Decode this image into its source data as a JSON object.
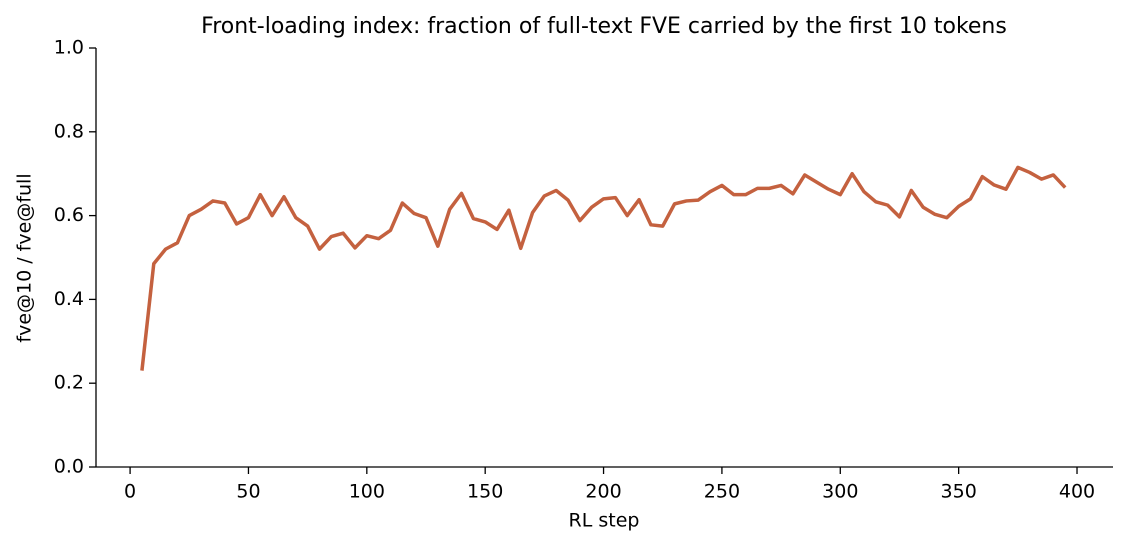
{
  "chart_data": {
    "type": "line",
    "title": "Front-loading index: fraction of full-text FVE carried by the first 10 tokens",
    "x_label": "RL step",
    "y_label": "fve@10 / fve@full",
    "x": [
      5,
      10,
      15,
      20,
      25,
      30,
      35,
      40,
      45,
      50,
      55,
      60,
      65,
      70,
      75,
      80,
      85,
      90,
      95,
      100,
      105,
      110,
      115,
      120,
      125,
      130,
      135,
      140,
      145,
      150,
      155,
      160,
      165,
      170,
      175,
      180,
      185,
      190,
      195,
      200,
      205,
      210,
      215,
      220,
      225,
      230,
      235,
      240,
      245,
      250,
      255,
      260,
      265,
      270,
      275,
      280,
      285,
      290,
      295,
      300,
      305,
      310,
      315,
      320,
      325,
      330,
      335,
      340,
      345,
      350,
      355,
      360,
      365,
      370,
      375,
      380,
      385,
      390,
      395
    ],
    "series": [
      {
        "name": "fve@10 / fve@full",
        "color": "#c4613f",
        "values": [
          0.23,
          0.485,
          0.52,
          0.535,
          0.6,
          0.615,
          0.635,
          0.63,
          0.58,
          0.595,
          0.65,
          0.6,
          0.645,
          0.595,
          0.575,
          0.52,
          0.55,
          0.558,
          0.523,
          0.552,
          0.545,
          0.565,
          0.63,
          0.605,
          0.595,
          0.527,
          0.615,
          0.653,
          0.593,
          0.585,
          0.567,
          0.613,
          0.522,
          0.607,
          0.647,
          0.66,
          0.637,
          0.588,
          0.62,
          0.64,
          0.643,
          0.6,
          0.638,
          0.578,
          0.575,
          0.628,
          0.635,
          0.637,
          0.657,
          0.672,
          0.65,
          0.65,
          0.665,
          0.665,
          0.672,
          0.652,
          0.697,
          0.68,
          0.663,
          0.65,
          0.7,
          0.657,
          0.633,
          0.625,
          0.597,
          0.66,
          0.62,
          0.603,
          0.595,
          0.622,
          0.64,
          0.693,
          0.673,
          0.663,
          0.715,
          0.703,
          0.687,
          0.697,
          0.667
        ]
      }
    ],
    "xlim": [
      -14.4,
      415.2
    ],
    "ylim": [
      0,
      1
    ],
    "xticks": [
      0,
      50,
      100,
      150,
      200,
      250,
      300,
      350,
      400
    ],
    "yticks": [
      {
        "value": 0,
        "label": "0.0"
      },
      {
        "value": 0.2,
        "label": "0.2"
      },
      {
        "value": 0.4,
        "label": "0.4"
      },
      {
        "value": 0.6,
        "label": "0.6"
      },
      {
        "value": 0.8,
        "label": "0.8"
      },
      {
        "value": 1,
        "label": "1.0"
      }
    ]
  }
}
